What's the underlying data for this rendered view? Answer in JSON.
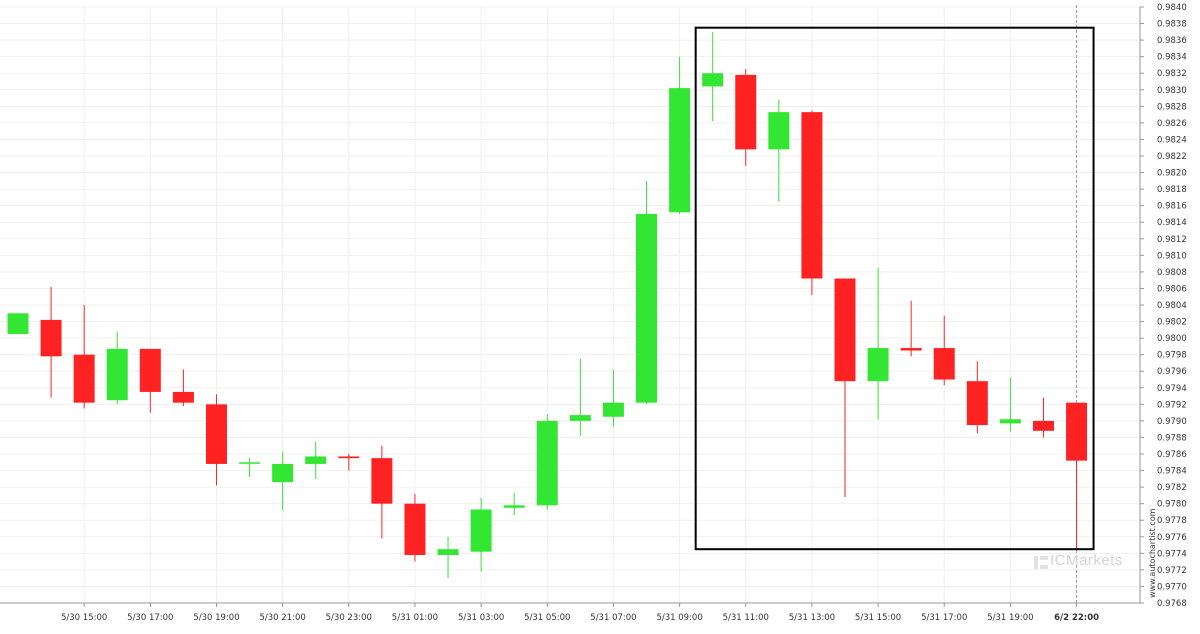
{
  "chart_data": {
    "type": "candlestick",
    "title": "",
    "xlabel": "",
    "ylabel": "",
    "ylim": [
      0.9768,
      0.984
    ],
    "y_tick_step": 0.0002,
    "x_tick_labels": [
      "5/30 15:00",
      "5/30 17:00",
      "5/30 19:00",
      "5/30 21:00",
      "5/30 23:00",
      "5/31 01:00",
      "5/31 03:00",
      "5/31 05:00",
      "5/31 07:00",
      "5/31 09:00",
      "5/31 11:00",
      "5/31 13:00",
      "5/31 15:00",
      "5/31 17:00",
      "5/31 19:00",
      "6/2 22:00"
    ],
    "x_tick_bar_index": [
      2,
      4,
      6,
      8,
      10,
      12,
      14,
      16,
      18,
      20,
      22,
      24,
      26,
      28,
      30,
      32
    ],
    "highlight_tick_label": "6/2 22:00",
    "candles": [
      {
        "o": 0.98005,
        "h": 0.9803,
        "l": 0.98005,
        "c": 0.9803
      },
      {
        "o": 0.98022,
        "h": 0.98062,
        "l": 0.97928,
        "c": 0.97978
      },
      {
        "o": 0.9798,
        "h": 0.9804,
        "l": 0.97915,
        "c": 0.97922
      },
      {
        "o": 0.97925,
        "h": 0.98008,
        "l": 0.9792,
        "c": 0.97987
      },
      {
        "o": 0.97987,
        "h": 0.97987,
        "l": 0.9791,
        "c": 0.97935
      },
      {
        "o": 0.97935,
        "h": 0.97962,
        "l": 0.97918,
        "c": 0.97922
      },
      {
        "o": 0.9792,
        "h": 0.97932,
        "l": 0.97822,
        "c": 0.97848
      },
      {
        "o": 0.9785,
        "h": 0.97855,
        "l": 0.97832,
        "c": 0.9785
      },
      {
        "o": 0.97826,
        "h": 0.97863,
        "l": 0.97792,
        "c": 0.97848
      },
      {
        "o": 0.97848,
        "h": 0.97875,
        "l": 0.9783,
        "c": 0.97857
      },
      {
        "o": 0.97857,
        "h": 0.9786,
        "l": 0.9784,
        "c": 0.97855
      },
      {
        "o": 0.97855,
        "h": 0.9787,
        "l": 0.97758,
        "c": 0.978
      },
      {
        "o": 0.978,
        "h": 0.97812,
        "l": 0.9773,
        "c": 0.97738
      },
      {
        "o": 0.97738,
        "h": 0.9776,
        "l": 0.9771,
        "c": 0.97745
      },
      {
        "o": 0.97742,
        "h": 0.97807,
        "l": 0.97718,
        "c": 0.97793
      },
      {
        "o": 0.97795,
        "h": 0.97813,
        "l": 0.97786,
        "c": 0.97798
      },
      {
        "o": 0.97798,
        "h": 0.97908,
        "l": 0.97793,
        "c": 0.979
      },
      {
        "o": 0.979,
        "h": 0.97975,
        "l": 0.97882,
        "c": 0.97907
      },
      {
        "o": 0.97905,
        "h": 0.97962,
        "l": 0.97893,
        "c": 0.97922
      },
      {
        "o": 0.97922,
        "h": 0.9819,
        "l": 0.9792,
        "c": 0.9815
      },
      {
        "o": 0.98152,
        "h": 0.9834,
        "l": 0.9815,
        "c": 0.98302
      },
      {
        "o": 0.98304,
        "h": 0.9837,
        "l": 0.98262,
        "c": 0.9832
      },
      {
        "o": 0.98318,
        "h": 0.98325,
        "l": 0.98208,
        "c": 0.98228
      },
      {
        "o": 0.98228,
        "h": 0.98288,
        "l": 0.98165,
        "c": 0.98273
      },
      {
        "o": 0.98273,
        "h": 0.98275,
        "l": 0.98052,
        "c": 0.98072
      },
      {
        "o": 0.98072,
        "h": 0.98072,
        "l": 0.97808,
        "c": 0.97948
      },
      {
        "o": 0.97948,
        "h": 0.98085,
        "l": 0.97902,
        "c": 0.97988
      },
      {
        "o": 0.97988,
        "h": 0.98045,
        "l": 0.97978,
        "c": 0.97985
      },
      {
        "o": 0.97988,
        "h": 0.98027,
        "l": 0.97943,
        "c": 0.9795
      },
      {
        "o": 0.97948,
        "h": 0.97972,
        "l": 0.97885,
        "c": 0.97895
      },
      {
        "o": 0.97897,
        "h": 0.97952,
        "l": 0.97887,
        "c": 0.97902
      },
      {
        "o": 0.979,
        "h": 0.97928,
        "l": 0.9788,
        "c": 0.97888
      },
      {
        "o": 0.97922,
        "h": 0.97922,
        "l": 0.97745,
        "c": 0.97852
      }
    ],
    "highlight_box": {
      "start_index": 21,
      "end_index": 32,
      "low": 0.97745,
      "high": 0.98375
    },
    "colors": {
      "up": "#33e633",
      "down": "#ff2222",
      "box": "#000000",
      "grid": "#f0f0f0",
      "axis": "#999999",
      "text": "#333333"
    }
  },
  "watermark": {
    "brand": "ICMarkets"
  },
  "side_credit": "www.autochartist.com"
}
